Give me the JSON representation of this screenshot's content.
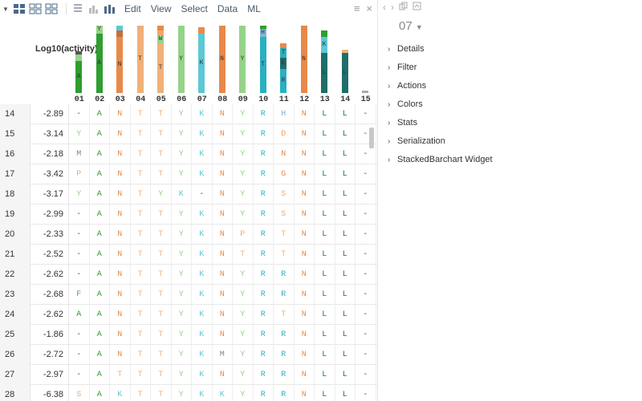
{
  "toolbar": {
    "menus": [
      "Edit",
      "View",
      "Select",
      "Data",
      "ML"
    ]
  },
  "grid": {
    "activity_header": "Log10(activity)",
    "columns": [
      "01",
      "02",
      "03",
      "04",
      "05",
      "06",
      "07",
      "08",
      "09",
      "10",
      "11",
      "12",
      "13",
      "14",
      "15"
    ],
    "rows": [
      {
        "idx": "14",
        "act": "-2.89",
        "seq": [
          "-",
          "A",
          "N",
          "T",
          "T",
          "Y",
          "K",
          "N",
          "Y",
          "R",
          "H",
          "N",
          "L",
          "L",
          "-"
        ]
      },
      {
        "idx": "15",
        "act": "-3.14",
        "seq": [
          "Y",
          "A",
          "N",
          "T",
          "T",
          "Y",
          "K",
          "N",
          "Y",
          "R",
          "D",
          "N",
          "L",
          "L",
          "-"
        ]
      },
      {
        "idx": "16",
        "act": "-2.18",
        "seq": [
          "M",
          "A",
          "N",
          "T",
          "T",
          "Y",
          "K",
          "N",
          "Y",
          "R",
          "N",
          "N",
          "L",
          "L",
          "-"
        ]
      },
      {
        "idx": "17",
        "act": "-3.42",
        "seq": [
          "P",
          "A",
          "N",
          "T",
          "T",
          "Y",
          "K",
          "N",
          "Y",
          "R",
          "G",
          "N",
          "L",
          "L",
          "-"
        ]
      },
      {
        "idx": "18",
        "act": "-3.17",
        "seq": [
          "Y",
          "A",
          "N",
          "T",
          "Y",
          "K",
          "-",
          "N",
          "Y",
          "R",
          "S",
          "N",
          "L",
          "L",
          "-"
        ]
      },
      {
        "idx": "19",
        "act": "-2.99",
        "seq": [
          "-",
          "A",
          "N",
          "T",
          "T",
          "Y",
          "K",
          "N",
          "Y",
          "R",
          "S",
          "N",
          "L",
          "L",
          "-"
        ]
      },
      {
        "idx": "20",
        "act": "-2.33",
        "seq": [
          "-",
          "A",
          "N",
          "T",
          "T",
          "Y",
          "K",
          "N",
          "P",
          "R",
          "T",
          "N",
          "L",
          "L",
          "-"
        ]
      },
      {
        "idx": "21",
        "act": "-2.52",
        "seq": [
          "-",
          "A",
          "N",
          "T",
          "T",
          "Y",
          "K",
          "N",
          "T",
          "R",
          "T",
          "N",
          "L",
          "L",
          "-"
        ]
      },
      {
        "idx": "22",
        "act": "-2.62",
        "seq": [
          "-",
          "A",
          "N",
          "T",
          "T",
          "Y",
          "K",
          "N",
          "Y",
          "R",
          "R",
          "N",
          "L",
          "L",
          "-"
        ]
      },
      {
        "idx": "23",
        "act": "-2.68",
        "seq": [
          "F",
          "A",
          "N",
          "T",
          "T",
          "Y",
          "K",
          "N",
          "Y",
          "R",
          "R",
          "N",
          "L",
          "L",
          "-"
        ]
      },
      {
        "idx": "24",
        "act": "-2.62",
        "seq": [
          "A",
          "A",
          "N",
          "T",
          "T",
          "Y",
          "K",
          "N",
          "Y",
          "R",
          "T",
          "N",
          "L",
          "L",
          "-"
        ]
      },
      {
        "idx": "25",
        "act": "-1.86",
        "seq": [
          "-",
          "A",
          "N",
          "T",
          "T",
          "Y",
          "K",
          "N",
          "Y",
          "R",
          "R",
          "N",
          "L",
          "L",
          "-"
        ]
      },
      {
        "idx": "26",
        "act": "-2.72",
        "seq": [
          "-",
          "A",
          "N",
          "T",
          "T",
          "Y",
          "K",
          "M",
          "Y",
          "R",
          "R",
          "N",
          "L",
          "L",
          "-"
        ]
      },
      {
        "idx": "27",
        "act": "-2.97",
        "seq": [
          "-",
          "A",
          "T",
          "T",
          "T",
          "Y",
          "K",
          "N",
          "Y",
          "R",
          "R",
          "N",
          "L",
          "L",
          "-"
        ]
      },
      {
        "idx": "28",
        "act": "-6.38",
        "seq": [
          "S",
          "A",
          "K",
          "T",
          "T",
          "Y",
          "K",
          "K",
          "Y",
          "R",
          "R",
          "N",
          "L",
          "L",
          "-"
        ]
      }
    ],
    "residue_colors": {
      "A": "#2e9e2e",
      "Y": "#96d38a",
      "M": "#7f8c8d",
      "P": "#f2a86b",
      "F": "#4aa85a",
      "S": "#f2a86b",
      "N": "#e8894a",
      "T": "#f0b07a",
      "K": "#5bc8d6",
      "H": "#7fb6d8",
      "D": "#f5a060",
      "G": "#e8894a",
      "R": "#29b0c2",
      "L": "#1f6e6a",
      "-": "#555555"
    },
    "logo": [
      [
        {
          "r": "A",
          "h": 40,
          "c": "#2e9e2e"
        },
        {
          "r": "Y",
          "h": 8,
          "c": "#96d38a"
        },
        {
          "r": "-",
          "h": 4,
          "c": "#555555"
        }
      ],
      [
        {
          "r": "A",
          "h": 74,
          "c": "#2e9e2e"
        },
        {
          "r": "Y",
          "h": 10,
          "c": "#96d38a"
        }
      ],
      [
        {
          "r": "N",
          "h": 70,
          "c": "#e8894a"
        },
        {
          "r": "Q",
          "h": 8,
          "c": "#c0703a"
        },
        {
          "r": "K",
          "h": 6,
          "c": "#5bc8d6"
        }
      ],
      [
        {
          "r": "T",
          "h": 84,
          "c": "#f0b07a"
        }
      ],
      [
        {
          "r": "T",
          "h": 62,
          "c": "#f0b07a"
        },
        {
          "r": "W",
          "h": 10,
          "c": "#96d38a"
        },
        {
          "r": "S",
          "h": 6,
          "c": "#f2a86b"
        },
        {
          "r": "R",
          "h": 6,
          "c": "#e8894a"
        }
      ],
      [
        {
          "r": "Y",
          "h": 84,
          "c": "#96d38a"
        }
      ],
      [
        {
          "r": "K",
          "h": 74,
          "c": "#5bc8d6"
        },
        {
          "r": "M",
          "h": 8,
          "c": "#e8894a"
        }
      ],
      [
        {
          "r": "N",
          "h": 84,
          "c": "#e8894a"
        }
      ],
      [
        {
          "r": "Y",
          "h": 84,
          "c": "#96d38a"
        }
      ],
      [
        {
          "r": "T",
          "h": 70,
          "c": "#29b0c2"
        },
        {
          "r": "H",
          "h": 10,
          "c": "#7fb6d8"
        },
        {
          "r": "V",
          "h": 4,
          "c": "#2e9e2e"
        }
      ],
      [
        {
          "r": "R",
          "h": 30,
          "c": "#29b0c2"
        },
        {
          "r": "E",
          "h": 14,
          "c": "#1f6e6a"
        },
        {
          "r": "T",
          "h": 12,
          "c": "#29b0c2"
        },
        {
          "r": "N",
          "h": 6,
          "c": "#e8894a"
        }
      ],
      [
        {
          "r": "N",
          "h": 84,
          "c": "#e8894a"
        }
      ],
      [
        {
          "r": "L",
          "h": 50,
          "c": "#1f6e6a"
        },
        {
          "r": "K",
          "h": 20,
          "c": "#5bc8d6"
        },
        {
          "r": "E",
          "h": 8,
          "c": "#2e9e2e"
        }
      ],
      [
        {
          "r": "L",
          "h": 50,
          "c": "#1f6e6a"
        },
        {
          "r": "-",
          "h": 4,
          "c": "#f0b07a"
        }
      ],
      [
        {
          "r": "-",
          "h": 3,
          "c": "#aaaaaa"
        }
      ]
    ]
  },
  "panel": {
    "title": "07",
    "sections": [
      "Details",
      "Filter",
      "Actions",
      "Colors",
      "Stats",
      "Serialization",
      "StackedBarchart Widget"
    ]
  }
}
